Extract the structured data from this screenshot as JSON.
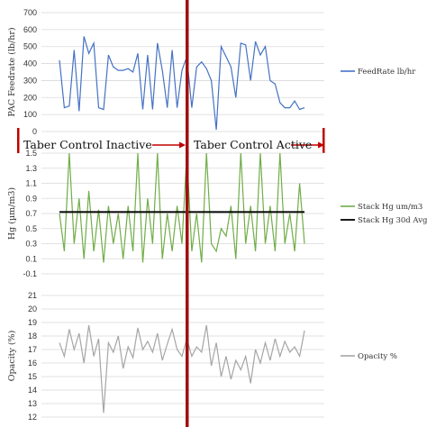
{
  "chart_data": [
    {
      "type": "line",
      "ylabel": "PAC Feedrate (lb/hr)",
      "ylim": [
        0,
        700
      ],
      "yticks": [
        0,
        100,
        200,
        300,
        400,
        500,
        600,
        700
      ],
      "grid": true,
      "legend_position": "right",
      "series": [
        {
          "name": "FeedRate lb/hr",
          "color": "#4472c4",
          "x": [
            0,
            2,
            4,
            6,
            8,
            10,
            12,
            14,
            16,
            18,
            20,
            22,
            24,
            26,
            28,
            30,
            32,
            34,
            36,
            38,
            40,
            42,
            44,
            46,
            48,
            50,
            52,
            54,
            56,
            58,
            60,
            62,
            64,
            66,
            68,
            70,
            72,
            74,
            76,
            78,
            80,
            82,
            84,
            86,
            88,
            90,
            92,
            94,
            96,
            98,
            100
          ],
          "values": [
            420,
            140,
            150,
            480,
            120,
            560,
            460,
            520,
            140,
            130,
            450,
            380,
            360,
            360,
            370,
            350,
            460,
            130,
            450,
            130,
            520,
            360,
            140,
            480,
            140,
            360,
            440,
            140,
            380,
            410,
            370,
            300,
            10,
            500,
            440,
            380,
            200,
            520,
            510,
            300,
            530,
            450,
            500,
            300,
            280,
            170,
            140,
            140,
            180,
            130,
            140
          ]
        }
      ]
    },
    {
      "type": "line",
      "ylabel": "Hg (µm/m3)",
      "ylim": [
        -0.1,
        1.5
      ],
      "yticks": [
        "-0.1",
        "0.1",
        "0.3",
        "0.5",
        "0.7",
        "0.9",
        "1.1",
        "1.3",
        "1.5"
      ],
      "grid": true,
      "legend_position": "right",
      "series": [
        {
          "name": "Stack Hg um/m3",
          "color": "#70ad47",
          "x": [
            0,
            2,
            4,
            6,
            8,
            10,
            12,
            14,
            16,
            18,
            20,
            22,
            24,
            26,
            28,
            30,
            32,
            34,
            36,
            38,
            40,
            42,
            44,
            46,
            48,
            50,
            52,
            54,
            56,
            58,
            60,
            62,
            64,
            66,
            68,
            70,
            72,
            74,
            76,
            78,
            80,
            82,
            84,
            86,
            88,
            90,
            92,
            94,
            96,
            98,
            100
          ],
          "values": [
            0.7,
            0.2,
            1.5,
            0.3,
            0.9,
            0.1,
            1.0,
            0.2,
            0.75,
            0.05,
            0.8,
            0.3,
            0.7,
            0.1,
            0.8,
            0.2,
            1.5,
            0.05,
            0.9,
            0.3,
            1.5,
            0.1,
            0.7,
            0.2,
            0.8,
            0.3,
            1.5,
            0.2,
            0.7,
            0.05,
            1.5,
            0.3,
            0.2,
            0.5,
            0.4,
            0.8,
            0.1,
            1.5,
            0.3,
            0.8,
            0.2,
            1.5,
            0.3,
            0.8,
            0.2,
            1.5,
            0.3,
            0.7,
            0.2,
            1.1,
            0.3
          ]
        },
        {
          "name": "Stack Hg 30d Avg",
          "color": "#000000",
          "x": [
            0,
            100
          ],
          "values": [
            0.72,
            0.72
          ]
        }
      ]
    },
    {
      "type": "line",
      "ylabel": "Opacity (%)",
      "ylim": [
        12,
        21
      ],
      "yticks": [
        12,
        13,
        14,
        15,
        16,
        17,
        18,
        19,
        20,
        21
      ],
      "grid": true,
      "legend_position": "right",
      "series": [
        {
          "name": "Opacity %",
          "color": "#a5a5a5",
          "x": [
            0,
            2,
            4,
            6,
            8,
            10,
            12,
            14,
            16,
            18,
            20,
            22,
            24,
            26,
            28,
            30,
            32,
            34,
            36,
            38,
            40,
            42,
            44,
            46,
            48,
            50,
            52,
            54,
            56,
            58,
            60,
            62,
            64,
            66,
            68,
            70,
            72,
            74,
            76,
            78,
            80,
            82,
            84,
            86,
            88,
            90,
            92,
            94,
            96,
            98,
            100
          ],
          "values": [
            17.5,
            16.5,
            18.5,
            17.0,
            18.2,
            16.0,
            18.8,
            16.5,
            17.8,
            12.3,
            17.5,
            16.8,
            18.0,
            15.6,
            17.2,
            16.4,
            18.6,
            17.0,
            17.6,
            16.8,
            18.2,
            16.2,
            17.4,
            18.5,
            17.0,
            16.5,
            17.8,
            16.5,
            17.2,
            16.8,
            18.8,
            15.8,
            17.5,
            15.0,
            16.5,
            14.8,
            16.2,
            15.5,
            16.5,
            14.5,
            17.0,
            16.0,
            17.5,
            16.2,
            17.8,
            16.5,
            17.6,
            16.8,
            17.2,
            16.5,
            18.4
          ]
        }
      ]
    }
  ],
  "annotations": {
    "inactive_label": "Taber Control Inactive",
    "active_label": "Taber Control Active"
  }
}
